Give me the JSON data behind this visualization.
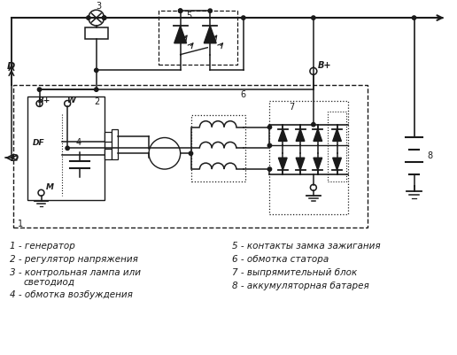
{
  "background_color": "#ffffff",
  "line_color": "#1a1a1a",
  "label_fontsize": 7.5,
  "legend_left": [
    "1 - генератор",
    "2 - регулятор напряжения",
    "3 - контрольная лампа или",
    "    светодиод",
    "4 - обмотка возбуждения"
  ],
  "legend_right": [
    "5 - контакты замка зажигания",
    "6 - обмотка статора",
    "7 - выпрямительный блок",
    "8 - аккумуляторная батарея"
  ]
}
